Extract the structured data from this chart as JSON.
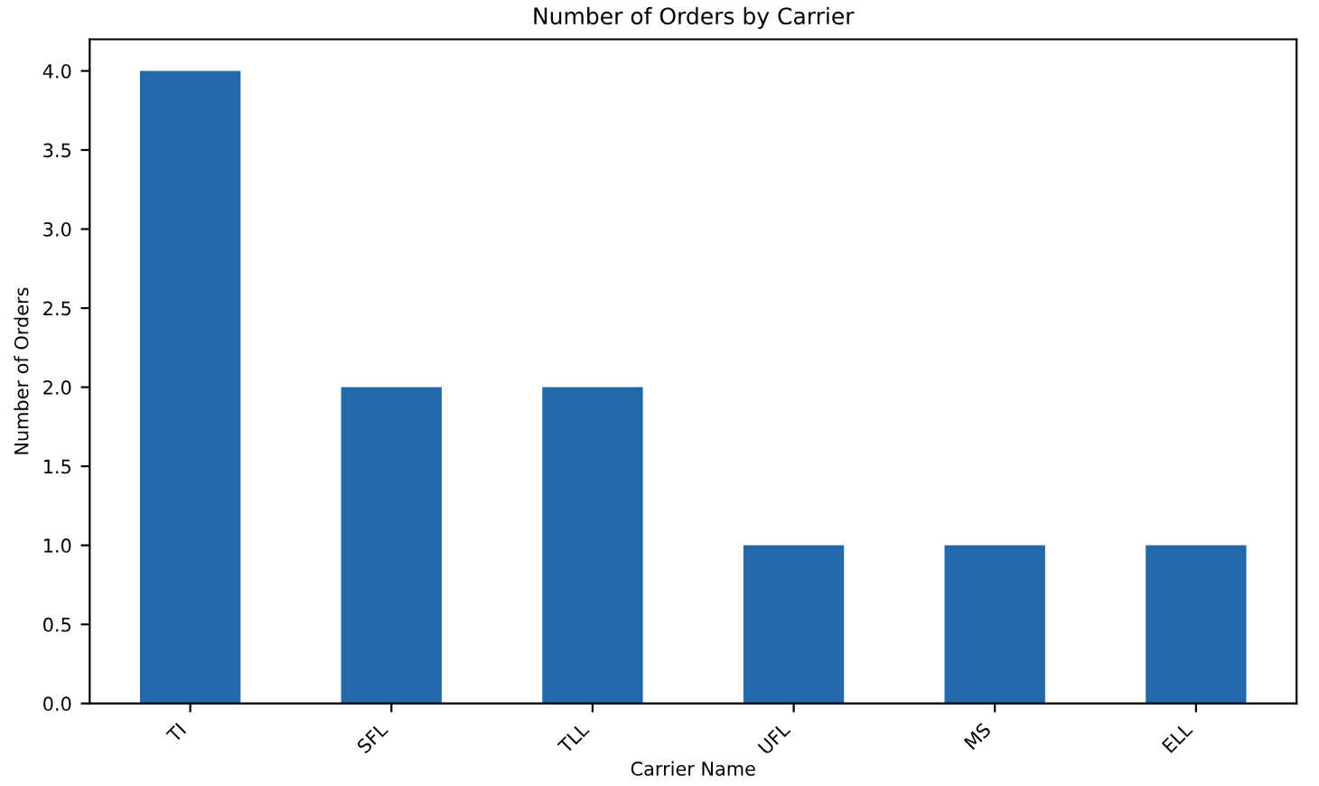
{
  "chart_data": {
    "type": "bar",
    "title": "Number of Orders by Carrier",
    "xlabel": "Carrier Name",
    "ylabel": "Number of Orders",
    "categories": [
      "TI",
      "SFL",
      "TLL",
      "UFL",
      "MS",
      "ELL"
    ],
    "values": [
      4,
      2,
      2,
      1,
      1,
      1
    ],
    "color": "#2369a9",
    "ylim": [
      0,
      4.2
    ],
    "yticks": [
      {
        "value": 0,
        "label": "0.0"
      },
      {
        "value": 0.5,
        "label": "0.5"
      },
      {
        "value": 1,
        "label": "1.0"
      },
      {
        "value": 1.5,
        "label": "1.5"
      },
      {
        "value": 2,
        "label": "2.0"
      },
      {
        "value": 2.5,
        "label": "2.5"
      },
      {
        "value": 3,
        "label": "3.0"
      },
      {
        "value": 3.5,
        "label": "3.5"
      },
      {
        "value": 4,
        "label": "4.0"
      }
    ],
    "grid": false,
    "legend": false
  }
}
